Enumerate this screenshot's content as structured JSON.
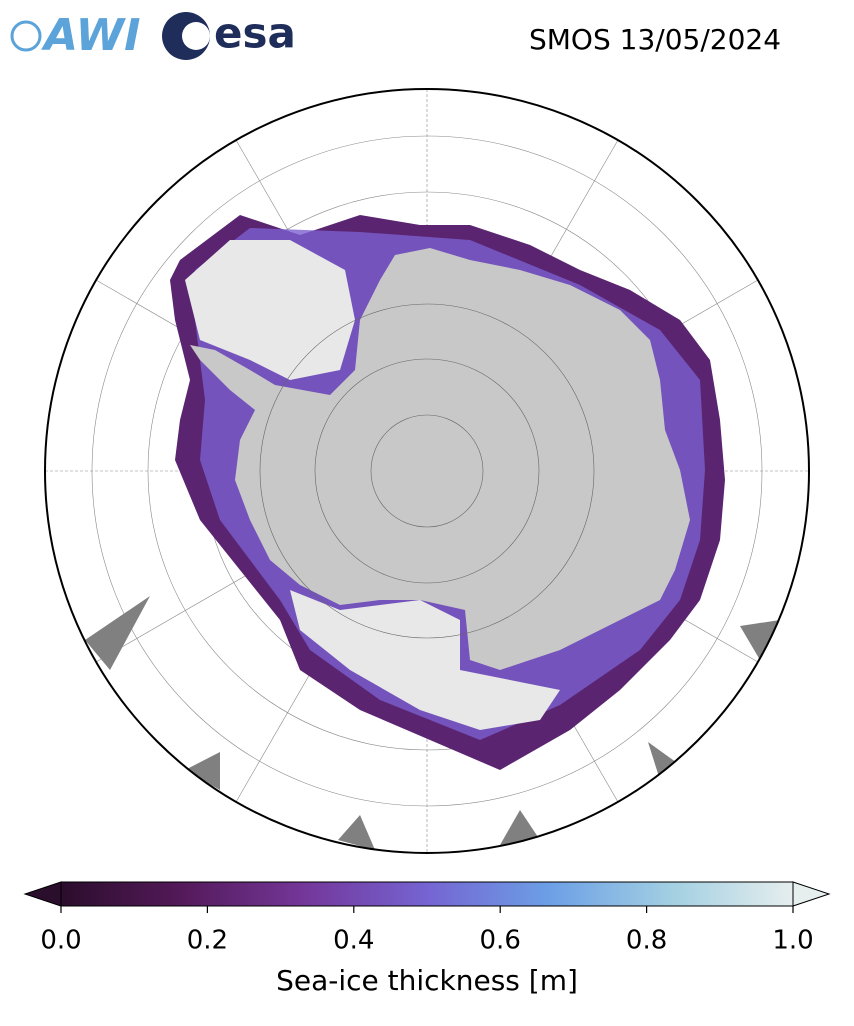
{
  "header": {
    "logos": [
      "AWI",
      "esa"
    ],
    "title": "SMOS 13/05/2024"
  },
  "colorbar": {
    "label": "Sea-ice thickness [m]",
    "lim": [
      0,
      1
    ],
    "ticks": [
      {
        "value": 0,
        "label": "0.0"
      },
      {
        "value": 0.2,
        "label": "0.2"
      },
      {
        "value": 0.4,
        "label": "0.4"
      },
      {
        "value": 0.6,
        "label": "0.6"
      },
      {
        "value": 0.8,
        "label": "0.8"
      },
      {
        "value": 1,
        "label": "1.0"
      }
    ],
    "colors": [
      "#2b0d2c",
      "#541a5a",
      "#74379a",
      "#7564d2",
      "#6c9fe6",
      "#a2cfe2",
      "#e6eeee"
    ]
  }
}
